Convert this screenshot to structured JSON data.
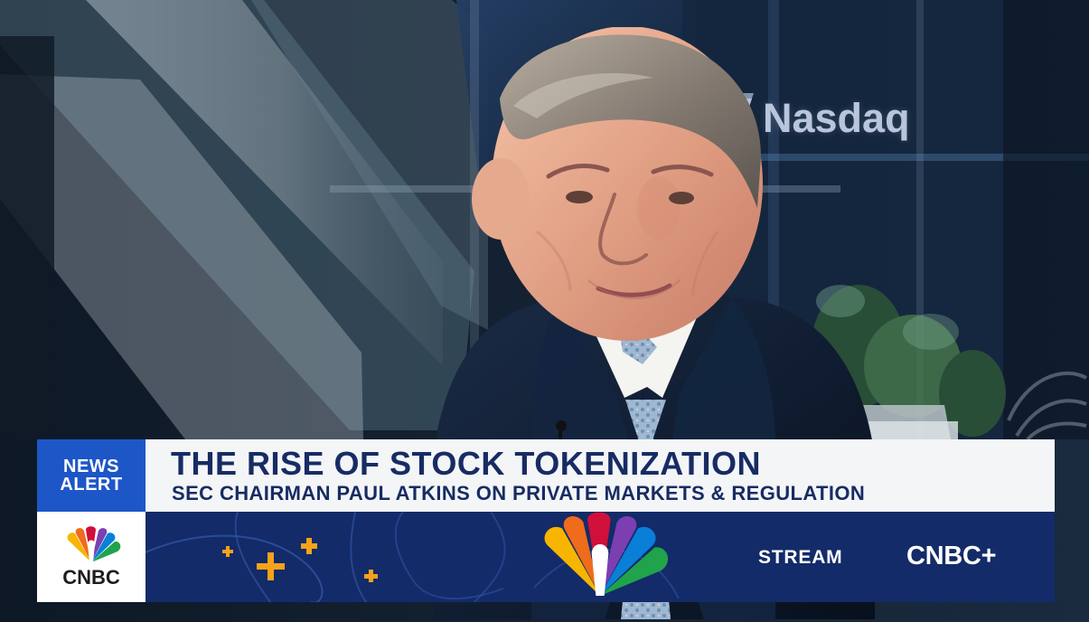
{
  "scene": {
    "backdrop_logo_text": "Nasdaq"
  },
  "lower_third": {
    "alert_line1": "NEWS",
    "alert_line2": "ALERT",
    "headline": "THE RISE OF STOCK TOKENIZATION",
    "subheadline": "SEC CHAIRMAN PAUL ATKINS ON PRIVATE MARKETS & REGULATION",
    "network_logo": "CNBC",
    "promo_label": "STREAM",
    "promo_brand": "CNBC+"
  },
  "colors": {
    "alert_blue": "#1d56c7",
    "headline_navy": "#172c63",
    "promo_navy": "#132b68",
    "accent_orange": "#f6a21a"
  },
  "icons": {
    "backdrop_logo": "nasdaq-logo-icon",
    "network_logo": "cnbc-peacock-icon",
    "decorative_plus": "plus-icon"
  }
}
